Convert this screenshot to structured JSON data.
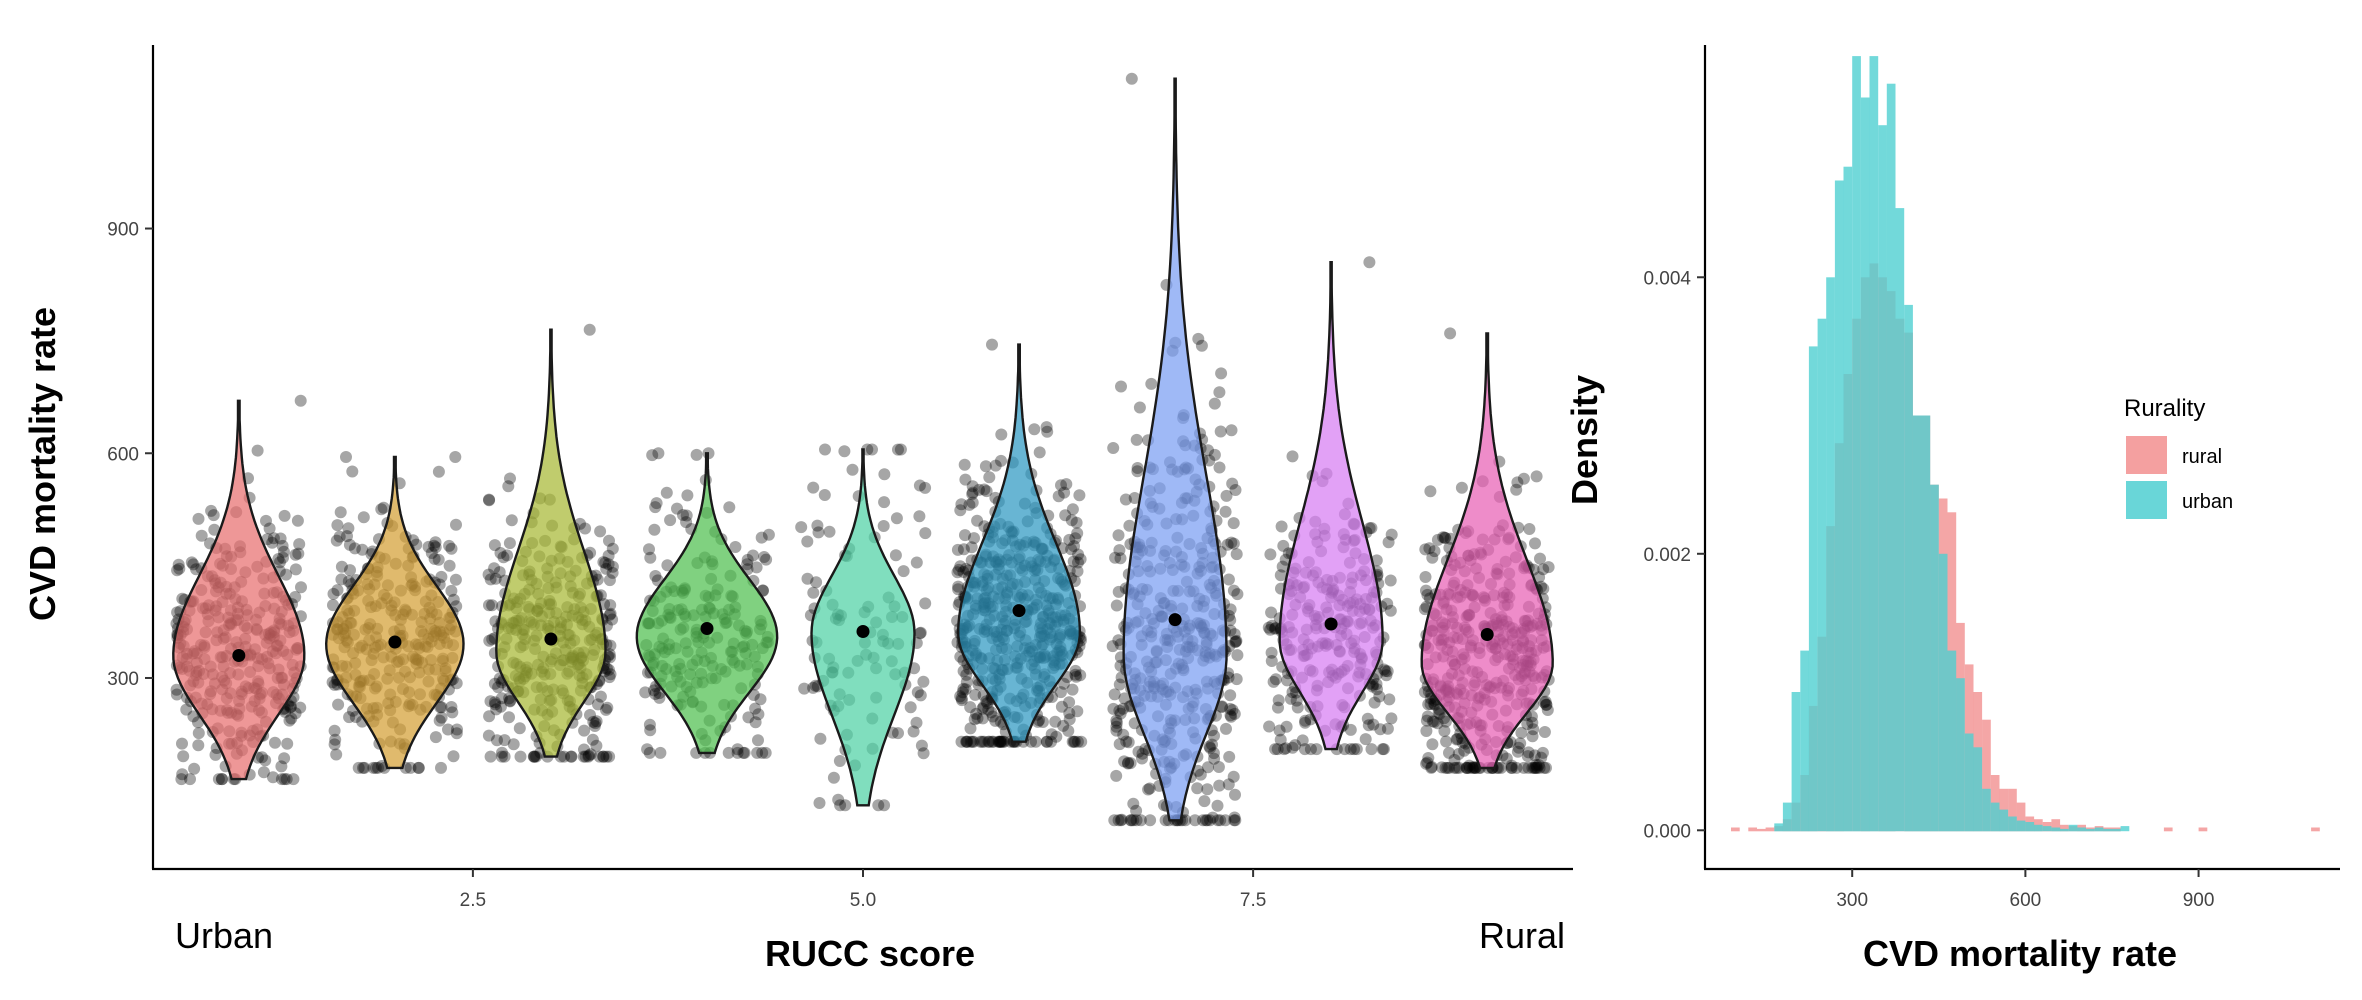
{
  "chart_data": [
    {
      "type": "violin",
      "xlabel": "RUCC score",
      "ylabel": "CVD mortality rate",
      "xlim": [
        0.45,
        9.55
      ],
      "ylim": [
        45,
        1145
      ],
      "xticks": [
        2.5,
        5.0,
        7.5
      ],
      "xtick_labels": [
        "2.5",
        "5.0",
        "7.5"
      ],
      "yticks": [
        300,
        600,
        900
      ],
      "ytick_labels": [
        "300",
        "600",
        "900"
      ],
      "x_end_labels": {
        "left": "Urban",
        "right": "Rural"
      },
      "grid": false,
      "jitter_points": {
        "color": "#000000",
        "opacity": 0.35
      },
      "mean_marker_color": "#000000",
      "groups": [
        {
          "rucc": 1,
          "color": "#E76F6F",
          "min": 165,
          "max": 670,
          "mean": 330,
          "mode": 330,
          "max_halfwidth": 0.42,
          "point_count": 330
        },
        {
          "rucc": 2,
          "color": "#D4A034",
          "min": 180,
          "max": 595,
          "mean": 348,
          "mode": 345,
          "max_halfwidth": 0.44,
          "point_count": 300
        },
        {
          "rucc": 3,
          "color": "#A8B834",
          "min": 195,
          "max": 765,
          "mean": 352,
          "mode": 335,
          "max_halfwidth": 0.35,
          "point_count": 330
        },
        {
          "rucc": 4,
          "color": "#4FBF4F",
          "min": 200,
          "max": 600,
          "mean": 366,
          "mode": 355,
          "max_halfwidth": 0.45,
          "point_count": 210
        },
        {
          "rucc": 5,
          "color": "#4FD1A5",
          "min": 130,
          "max": 605,
          "mean": 362,
          "mode": 360,
          "max_halfwidth": 0.33,
          "point_count": 110
        },
        {
          "rucc": 6,
          "color": "#2E98C2",
          "min": 215,
          "max": 745,
          "mean": 390,
          "mode": 360,
          "max_halfwidth": 0.39,
          "point_count": 500
        },
        {
          "rucc": 7,
          "color": "#7A9EF2",
          "min": 110,
          "max": 1100,
          "mean": 378,
          "mode": 330,
          "max_halfwidth": 0.33,
          "point_count": 430
        },
        {
          "rucc": 8,
          "color": "#D77DF2",
          "min": 205,
          "max": 855,
          "mean": 372,
          "mode": 350,
          "max_halfwidth": 0.33,
          "point_count": 260
        },
        {
          "rucc": 9,
          "color": "#E860B4",
          "min": 180,
          "max": 760,
          "mean": 358,
          "mode": 320,
          "max_halfwidth": 0.42,
          "point_count": 430
        }
      ]
    },
    {
      "type": "histogram",
      "xlabel": "CVD mortality rate",
      "ylabel": "Density",
      "xlim": [
        45,
        1145
      ],
      "ylim": [
        -0.00028,
        0.00568
      ],
      "xticks": [
        300,
        600,
        900
      ],
      "xtick_labels": [
        "300",
        "600",
        "900"
      ],
      "yticks": [
        0,
        0.002,
        0.004
      ],
      "ytick_labels": [
        "0.000",
        "0.002",
        "0.004"
      ],
      "bin_width": 15,
      "grid": false,
      "legend": {
        "title": "Rurality",
        "position": "right"
      },
      "series": [
        {
          "name": "rural",
          "color": "#F08080",
          "opacity": 0.7,
          "bins": [
            [
              90,
              2e-05
            ],
            [
              120,
              2e-05
            ],
            [
              135,
              1e-05
            ],
            [
              150,
              2e-05
            ],
            [
              165,
              3e-05
            ],
            [
              180,
              8e-05
            ],
            [
              195,
              0.0002
            ],
            [
              210,
              0.0004
            ],
            [
              225,
              0.0009
            ],
            [
              240,
              0.0014
            ],
            [
              255,
              0.0022
            ],
            [
              270,
              0.0028
            ],
            [
              285,
              0.0033
            ],
            [
              300,
              0.0037
            ],
            [
              315,
              0.004
            ],
            [
              330,
              0.0041
            ],
            [
              345,
              0.004
            ],
            [
              360,
              0.0039
            ],
            [
              375,
              0.0037
            ],
            [
              390,
              0.0036
            ],
            [
              405,
              0.003
            ],
            [
              420,
              0.003
            ],
            [
              435,
              0.0025
            ],
            [
              450,
              0.0024
            ],
            [
              465,
              0.0023
            ],
            [
              480,
              0.0015
            ],
            [
              495,
              0.0012
            ],
            [
              510,
              0.001
            ],
            [
              525,
              0.0008
            ],
            [
              540,
              0.0004
            ],
            [
              555,
              0.0003
            ],
            [
              570,
              0.0003
            ],
            [
              585,
              0.0002
            ],
            [
              600,
              0.0001
            ],
            [
              615,
              8e-05
            ],
            [
              630,
              6e-05
            ],
            [
              645,
              8e-05
            ],
            [
              660,
              4e-05
            ],
            [
              675,
              3e-05
            ],
            [
              690,
              4e-05
            ],
            [
              705,
              2e-05
            ],
            [
              720,
              3e-05
            ],
            [
              735,
              2e-05
            ],
            [
              750,
              2e-05
            ],
            [
              840,
              2e-05
            ],
            [
              900,
              2e-05
            ],
            [
              1095,
              2e-05
            ]
          ]
        },
        {
          "name": "urban",
          "color": "#4FCFD1",
          "opacity": 0.8,
          "bins": [
            [
              165,
              5e-05
            ],
            [
              180,
              0.0002
            ],
            [
              195,
              0.001
            ],
            [
              210,
              0.0013
            ],
            [
              225,
              0.0035
            ],
            [
              240,
              0.0037
            ],
            [
              255,
              0.004
            ],
            [
              270,
              0.0047
            ],
            [
              285,
              0.0048
            ],
            [
              300,
              0.0056
            ],
            [
              315,
              0.0053
            ],
            [
              330,
              0.0056
            ],
            [
              345,
              0.0051
            ],
            [
              360,
              0.0054
            ],
            [
              375,
              0.0045
            ],
            [
              390,
              0.0038
            ],
            [
              405,
              0.003
            ],
            [
              420,
              0.003
            ],
            [
              435,
              0.0025
            ],
            [
              450,
              0.002
            ],
            [
              465,
              0.0013
            ],
            [
              480,
              0.0011
            ],
            [
              495,
              0.0007
            ],
            [
              510,
              0.0006
            ],
            [
              525,
              0.0003
            ],
            [
              540,
              0.0002
            ],
            [
              555,
              0.00015
            ],
            [
              570,
              0.0001
            ],
            [
              585,
              7e-05
            ],
            [
              600,
              6e-05
            ],
            [
              615,
              4e-05
            ],
            [
              630,
              3e-05
            ],
            [
              645,
              2e-05
            ],
            [
              660,
              1e-05
            ],
            [
              675,
              4e-05
            ],
            [
              690,
              2e-05
            ],
            [
              705,
              1e-05
            ],
            [
              720,
              2e-05
            ],
            [
              735,
              1e-05
            ],
            [
              750,
              1e-05
            ],
            [
              765,
              3e-05
            ]
          ]
        }
      ]
    }
  ]
}
